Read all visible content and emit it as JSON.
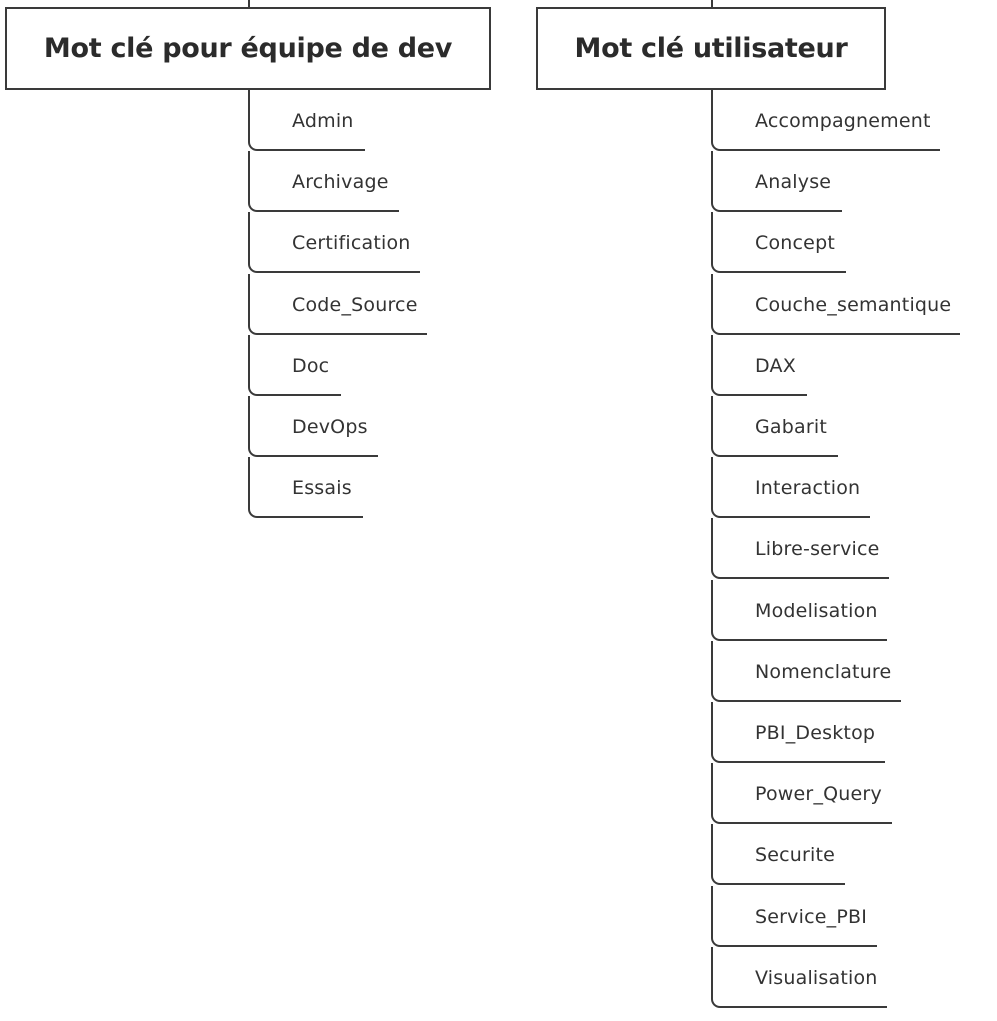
{
  "groups": [
    {
      "title": "Mot clé pour équipe de dev",
      "items": [
        "Admin",
        "Archivage",
        "Certification",
        "Code_Source",
        "Doc",
        "DevOps",
        "Essais"
      ]
    },
    {
      "title": "Mot clé utilisateur",
      "items": [
        "Accompagnement",
        "Analyse",
        "Concept",
        "Couche_semantique",
        "DAX",
        "Gabarit",
        "Interaction",
        "Libre-service",
        "Modelisation",
        "Nomenclature",
        "PBI_Desktop",
        "Power_Query",
        "Securite",
        "Service_PBI",
        "Visualisation"
      ]
    }
  ],
  "colors": {
    "line": "#3a3a3a",
    "text": "#333333",
    "background": "#ffffff"
  }
}
